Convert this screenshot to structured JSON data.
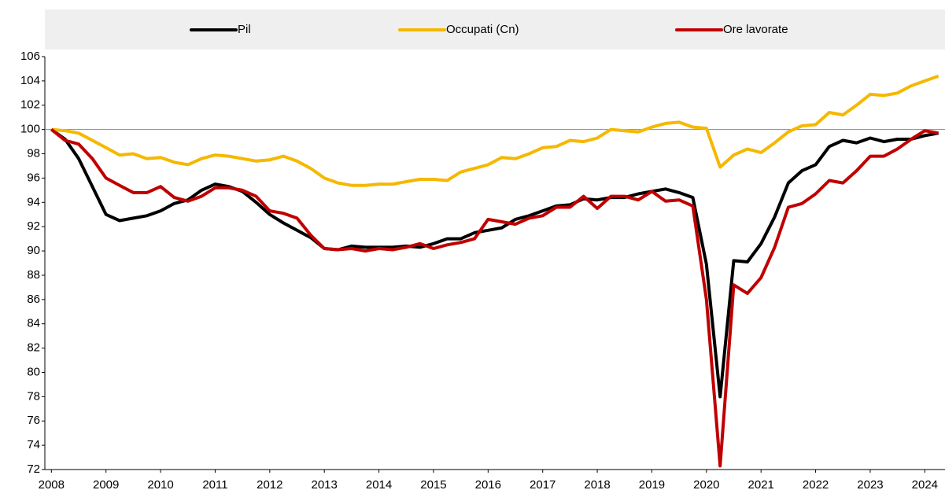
{
  "chart_data": {
    "type": "line",
    "x": [
      2008,
      2008.25,
      2008.5,
      2008.75,
      2009,
      2009.25,
      2009.5,
      2009.75,
      2010,
      2010.25,
      2010.5,
      2010.75,
      2011,
      2011.25,
      2011.5,
      2011.75,
      2012,
      2012.25,
      2012.5,
      2012.75,
      2013,
      2013.25,
      2013.5,
      2013.75,
      2014,
      2014.25,
      2014.5,
      2014.75,
      2015,
      2015.25,
      2015.5,
      2015.75,
      2016,
      2016.25,
      2016.5,
      2016.75,
      2017,
      2017.25,
      2017.5,
      2017.75,
      2018,
      2018.25,
      2018.5,
      2018.75,
      2019,
      2019.25,
      2019.5,
      2019.75,
      2020,
      2020.25,
      2020.5,
      2020.75,
      2021,
      2021.25,
      2021.5,
      2021.75,
      2022,
      2022.25,
      2022.5,
      2022.75,
      2023,
      2023.25,
      2023.5,
      2023.75,
      2024,
      2024.25
    ],
    "series": [
      {
        "name": "Pil",
        "color": "#000000",
        "values": [
          100,
          99.2,
          97.6,
          95.3,
          93.0,
          92.5,
          92.7,
          92.9,
          93.3,
          93.9,
          94.2,
          95.0,
          95.5,
          95.3,
          94.9,
          94.0,
          93.0,
          92.3,
          91.7,
          91.1,
          90.2,
          90.1,
          90.4,
          90.3,
          90.3,
          90.3,
          90.4,
          90.3,
          90.6,
          91.0,
          91.0,
          91.5,
          91.7,
          91.9,
          92.6,
          92.9,
          93.3,
          93.7,
          93.8,
          94.3,
          94.2,
          94.4,
          94.4,
          94.7,
          94.9,
          95.1,
          94.8,
          94.4,
          88.9,
          78.0,
          89.2,
          89.1,
          90.6,
          92.8,
          95.6,
          96.6,
          97.1,
          98.6,
          99.1,
          98.9,
          99.3,
          99.0,
          99.2,
          99.2,
          99.5,
          99.7
        ]
      },
      {
        "name": "Occupati (Cn)",
        "color": "#f5b800",
        "values": [
          100,
          99.9,
          99.7,
          99.1,
          98.5,
          97.9,
          98.0,
          97.6,
          97.7,
          97.3,
          97.1,
          97.6,
          97.9,
          97.8,
          97.6,
          97.4,
          97.5,
          97.8,
          97.4,
          96.8,
          96.0,
          95.6,
          95.4,
          95.4,
          95.5,
          95.5,
          95.7,
          95.9,
          95.9,
          95.8,
          96.5,
          96.8,
          97.1,
          97.7,
          97.6,
          98.0,
          98.5,
          98.6,
          99.1,
          99.0,
          99.3,
          100.0,
          99.9,
          99.8,
          100.2,
          100.5,
          100.6,
          100.2,
          100.1,
          96.9,
          97.9,
          98.4,
          98.1,
          98.9,
          99.8,
          100.3,
          100.4,
          101.4,
          101.2,
          102.0,
          102.9,
          102.8,
          103.0,
          103.6,
          104.0,
          104.4
        ]
      },
      {
        "name": "Ore lavorate",
        "color": "#c00000",
        "values": [
          100,
          99.1,
          98.8,
          97.6,
          96.0,
          95.4,
          94.8,
          94.8,
          95.3,
          94.4,
          94.1,
          94.5,
          95.2,
          95.2,
          95.0,
          94.5,
          93.3,
          93.1,
          92.7,
          91.3,
          90.2,
          90.1,
          90.2,
          90.0,
          90.2,
          90.1,
          90.3,
          90.6,
          90.2,
          90.5,
          90.7,
          91.0,
          92.6,
          92.4,
          92.2,
          92.7,
          92.9,
          93.6,
          93.6,
          94.5,
          93.5,
          94.5,
          94.5,
          94.2,
          94.9,
          94.1,
          94.2,
          93.7,
          86.0,
          72.3,
          87.2,
          86.5,
          87.8,
          90.3,
          93.6,
          93.9,
          94.7,
          95.8,
          95.6,
          96.6,
          97.8,
          97.8,
          98.4,
          99.2,
          99.9,
          99.7
        ]
      }
    ],
    "xlim": [
      2007.88,
      2024.37
    ],
    "xticks": [
      2008,
      2009,
      2010,
      2011,
      2012,
      2013,
      2014,
      2015,
      2016,
      2017,
      2018,
      2019,
      2020,
      2021,
      2022,
      2023,
      2024
    ],
    "ylim": [
      72,
      106
    ],
    "yticks": [
      72,
      74,
      76,
      78,
      80,
      82,
      84,
      86,
      88,
      90,
      92,
      94,
      96,
      98,
      100,
      102,
      104,
      106
    ],
    "reference_line": 100,
    "legend": "top"
  }
}
